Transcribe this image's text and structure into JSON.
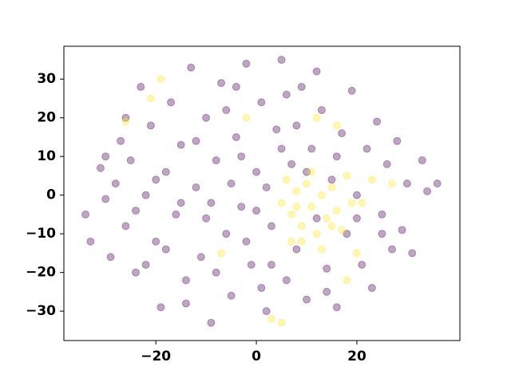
{
  "chart_data": {
    "type": "scatter",
    "xlim": [
      -38.3,
      40.5
    ],
    "ylim": [
      -37.6,
      38.5
    ],
    "xticks": [
      {
        "value": -20,
        "label": "−20"
      },
      0,
      20
    ],
    "yticks": [
      {
        "value": -30,
        "label": "−30"
      },
      {
        "value": -20,
        "label": "−20"
      },
      {
        "value": -10,
        "label": "−10"
      },
      0,
      10,
      20,
      30
    ],
    "series": [
      {
        "color": "#440154",
        "x": [
          -34,
          -33,
          -31,
          -30,
          -29,
          -28,
          -27,
          -26,
          -25,
          -24,
          -23,
          -22,
          -21,
          -20,
          -19,
          -18,
          -17,
          -16,
          -15,
          -14,
          -13,
          -12,
          -11,
          -10,
          -9,
          -8,
          -7,
          -6,
          -5,
          -4,
          -3,
          -2,
          -1,
          0,
          1,
          2,
          3,
          4,
          5,
          6,
          7,
          8,
          9,
          10,
          11,
          12,
          13,
          14,
          15,
          16,
          17,
          18,
          19,
          20,
          21,
          22,
          23,
          24,
          25,
          26,
          27,
          28,
          29,
          30,
          31,
          33,
          34,
          36,
          -20,
          -15,
          -10,
          -5,
          0,
          5,
          -8,
          -3,
          2,
          -12,
          -18,
          -24,
          -6,
          3,
          8,
          12,
          -14,
          -2,
          6,
          10,
          -26,
          -22,
          16,
          20,
          -9,
          1,
          -4,
          14,
          -30,
          25
        ],
        "y": [
          -5,
          -12,
          7,
          -1,
          -16,
          3,
          14,
          -8,
          9,
          -20,
          28,
          0,
          18,
          -12,
          -29,
          6,
          24,
          -5,
          13,
          -22,
          33,
          2,
          -16,
          20,
          -33,
          9,
          29,
          -10,
          -26,
          15,
          -3,
          34,
          -18,
          6,
          24,
          -30,
          -8,
          17,
          35,
          -22,
          8,
          -14,
          28,
          -27,
          12,
          -6,
          22,
          -19,
          4,
          -29,
          16,
          -10,
          27,
          0,
          -18,
          12,
          -24,
          19,
          -5,
          8,
          -14,
          14,
          -9,
          3,
          -15,
          9,
          1,
          3,
          4,
          -2,
          -6,
          3,
          -4,
          12,
          -20,
          10,
          2,
          14,
          -14,
          -4,
          22,
          -18,
          18,
          32,
          -28,
          -12,
          26,
          6,
          20,
          -18,
          10,
          -6,
          -2,
          -24,
          28,
          -25,
          10,
          -10
        ]
      },
      {
        "color": "#fde725",
        "x": [
          5,
          7,
          8,
          9,
          10,
          11,
          12,
          13,
          14,
          15,
          16,
          17,
          18,
          19,
          9,
          11,
          13,
          15,
          7,
          21,
          16,
          12,
          -19,
          -21,
          -26,
          -7,
          18,
          5,
          3,
          27,
          23,
          -2,
          20,
          8,
          6
        ],
        "y": [
          -2,
          -5,
          1,
          -8,
          3,
          -3,
          -10,
          0,
          -6,
          2,
          -4,
          -9,
          5,
          -2,
          -12,
          6,
          -14,
          -8,
          -12,
          -2,
          18,
          20,
          30,
          25,
          19,
          -15,
          -22,
          -33,
          -32,
          3,
          4,
          20,
          -15,
          -3,
          4
        ]
      }
    ]
  }
}
